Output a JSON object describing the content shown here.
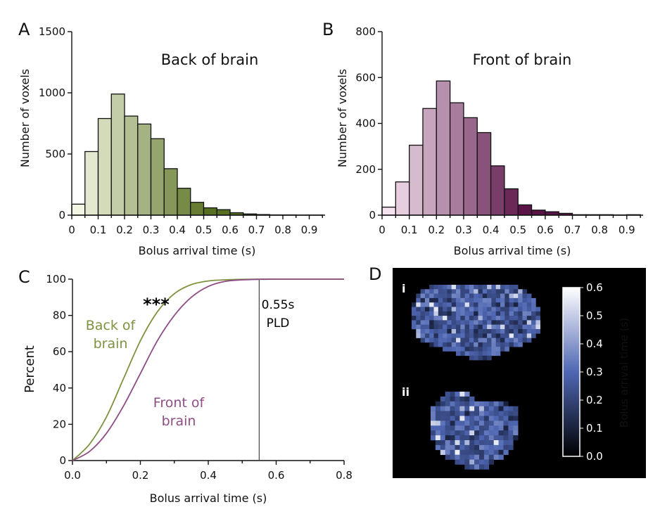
{
  "panels": {
    "a": {
      "letter": "A"
    },
    "b": {
      "letter": "B"
    },
    "c": {
      "letter": "C"
    },
    "d": {
      "letter": "D"
    }
  },
  "colors": {
    "green_curve": "#7d9341",
    "purple_curve": "#8e4d85",
    "pld_line": "#444444",
    "green_light": "#f2f6e2",
    "green_dark": "#56701f",
    "purple_light": "#f5e3f0",
    "purple_dark": "#5a1448",
    "heatmap_bg": "#000000",
    "colorbar_low": "#000000",
    "colorbar_mid": "#4f67b3",
    "colorbar_high": "#ffffff"
  },
  "chart_data": [
    {
      "id": "a",
      "type": "bar",
      "title": "Back of brain",
      "xlabel": "Bolus arrival time (s)",
      "ylabel": "Number of voxels",
      "bin_width": 0.05,
      "bin_starts": [
        0.0,
        0.05,
        0.1,
        0.15,
        0.2,
        0.25,
        0.3,
        0.35,
        0.4,
        0.45,
        0.5,
        0.55,
        0.6,
        0.65,
        0.7,
        0.75,
        0.8,
        0.85,
        0.9
      ],
      "values": [
        90,
        520,
        790,
        990,
        810,
        745,
        625,
        380,
        220,
        105,
        60,
        45,
        20,
        10,
        5,
        2,
        2,
        1,
        1
      ],
      "xlim": [
        0,
        0.96
      ],
      "ylim": [
        0,
        1500
      ],
      "xticks": [
        0,
        0.1,
        0.2,
        0.3,
        0.4,
        0.5,
        0.6,
        0.7,
        0.8,
        0.9
      ],
      "xtick_labels": [
        "0",
        "0.1",
        "0.2",
        "0.3",
        "0.4",
        "0.5",
        "0.6",
        "0.7",
        "0.8",
        "0.9"
      ],
      "yticks": [
        0,
        500,
        1000,
        1500
      ],
      "ytick_labels": [
        "0",
        "500",
        "1000",
        "1500"
      ]
    },
    {
      "id": "b",
      "type": "bar",
      "title": "Front of brain",
      "xlabel": "Bolus arrival time (s)",
      "ylabel": "Number of voxels",
      "bin_width": 0.05,
      "bin_starts": [
        0.0,
        0.05,
        0.1,
        0.15,
        0.2,
        0.25,
        0.3,
        0.35,
        0.4,
        0.45,
        0.5,
        0.55,
        0.6,
        0.65,
        0.7,
        0.75,
        0.8,
        0.85,
        0.9
      ],
      "values": [
        35,
        145,
        305,
        465,
        585,
        490,
        425,
        360,
        215,
        115,
        45,
        22,
        15,
        8,
        2,
        2,
        2,
        1,
        2
      ],
      "xlim": [
        0,
        0.96
      ],
      "ylim": [
        0,
        800
      ],
      "xticks": [
        0,
        0.1,
        0.2,
        0.3,
        0.4,
        0.5,
        0.6,
        0.7,
        0.8,
        0.9
      ],
      "xtick_labels": [
        "0",
        "0.1",
        "0.2",
        "0.3",
        "0.4",
        "0.5",
        "0.6",
        "0.7",
        "0.8",
        "0.9"
      ],
      "yticks": [
        0,
        200,
        400,
        600,
        800
      ],
      "ytick_labels": [
        "0",
        "200",
        "400",
        "600",
        "800"
      ]
    },
    {
      "id": "c",
      "type": "line",
      "xlabel": "Bolus arrival time (s)",
      "ylabel": "Percent",
      "xlim": [
        0,
        0.8
      ],
      "ylim": [
        0,
        100
      ],
      "xticks": [
        0,
        0.2,
        0.4,
        0.6,
        0.8
      ],
      "xtick_labels": [
        "0.0",
        "0.2",
        "0.4",
        "0.6",
        "0.8"
      ],
      "yticks": [
        0,
        20,
        40,
        60,
        80,
        100
      ],
      "ytick_labels": [
        "0",
        "20",
        "40",
        "60",
        "80",
        "100"
      ],
      "x": [
        0,
        0.05,
        0.1,
        0.15,
        0.2,
        0.25,
        0.3,
        0.35,
        0.4,
        0.45,
        0.5,
        0.55,
        0.6,
        0.65,
        0.7,
        0.75,
        0.8
      ],
      "series": [
        {
          "name": "Back of brain",
          "label_line1": "Back of",
          "label_line2": "brain",
          "values": [
            0,
            9,
            24,
            45,
            66,
            82,
            92,
            97,
            99,
            99.6,
            99.9,
            100,
            100,
            100,
            100,
            100,
            100
          ]
        },
        {
          "name": "Front of brain",
          "label_line1": "Front of",
          "label_line2": "brain",
          "values": [
            0,
            5,
            15,
            30,
            48,
            66,
            80,
            90,
            96,
            98.8,
            99.6,
            99.9,
            100,
            100,
            100,
            100,
            100
          ]
        }
      ],
      "significance": "***",
      "pld": {
        "x": 0.55,
        "label_line1": "0.55s",
        "label_line2": "PLD"
      }
    },
    {
      "id": "d",
      "type": "heatmap",
      "colorbar_label": "Bolus arrival time (s)",
      "colorbar_range": [
        0.0,
        0.6
      ],
      "colorbar_ticks": [
        0.0,
        0.1,
        0.2,
        0.3,
        0.4,
        0.5,
        0.6
      ],
      "colorbar_tick_labels": [
        "0.0",
        "0.1",
        "0.2",
        "0.3",
        "0.4",
        "0.5",
        "0.6"
      ],
      "subpanel_i": "i",
      "subpanel_ii": "ii"
    }
  ]
}
